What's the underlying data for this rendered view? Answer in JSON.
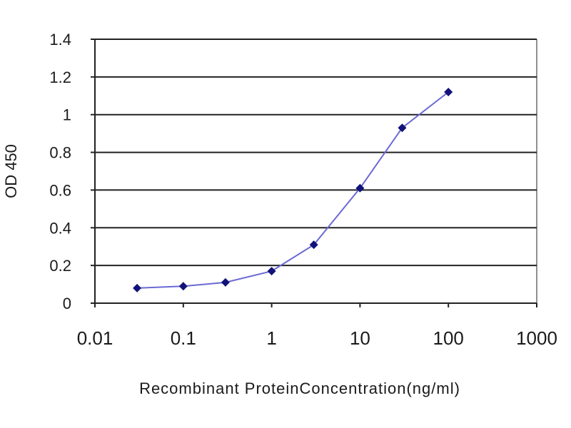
{
  "chart_data": {
    "type": "line",
    "title": "",
    "xlabel": "Recombinant ProteinConcentration(ng/ml)",
    "ylabel": "OD 450",
    "x_scale": "log",
    "xlim": [
      0.01,
      1000
    ],
    "ylim": [
      0,
      1.4
    ],
    "x_ticks": [
      "0.01",
      "0.1",
      "1",
      "10",
      "100",
      "1000"
    ],
    "y_ticks": [
      "0",
      "0.2",
      "0.4",
      "0.6",
      "0.8",
      "1",
      "1.2",
      "1.4"
    ],
    "grid": "horizontal",
    "legend": "none",
    "series": [
      {
        "x": [
          0.03,
          0.1,
          0.3,
          1,
          3,
          10,
          30,
          100
        ],
        "y": [
          0.08,
          0.09,
          0.11,
          0.17,
          0.31,
          0.61,
          0.93,
          1.12
        ]
      }
    ],
    "colors": {
      "line": "#6a6ad4",
      "marker": "#12127a",
      "grid": "#222222",
      "plot_background": "#ffffff"
    }
  }
}
